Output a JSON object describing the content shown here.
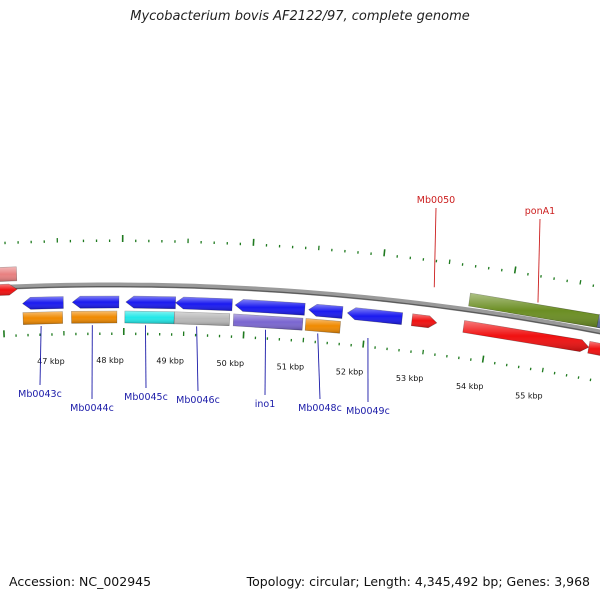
{
  "title": "Mycobacterium bovis AF2122/97, complete genome",
  "footer": {
    "accession": "Accession: NC_002945",
    "summary": "Topology: circular; Length: 4,345,492 bp; Genes: 3,968"
  },
  "colors": {
    "backbone": "#7a7a7a",
    "tick": "#1f7a1f",
    "label_blue": "#1a1aa8",
    "label_red": "#cc1f1f",
    "blue": "#1a1af0",
    "orange": "#f08a00",
    "cyan": "#22e8e8",
    "grey": "#b8b8b8",
    "purple": "#7a66d0",
    "red": "#f01010",
    "pink": "#e88080",
    "olive": "#6b8e23"
  },
  "kbp_labels": [
    "47 kbp",
    "48 kbp",
    "49 kbp",
    "50 kbp",
    "51 kbp",
    "52 kbp",
    "53 kbp",
    "54 kbp",
    "55 kbp"
  ],
  "genes": [
    {
      "label": "Mb0043c",
      "color": "blue",
      "pair": "orange"
    },
    {
      "label": "Mb0044c",
      "color": "blue",
      "pair": "orange"
    },
    {
      "label": "Mb0045c",
      "color": "blue",
      "pair": "cyan"
    },
    {
      "label": "Mb0046c",
      "color": "blue",
      "pair": "grey"
    },
    {
      "label": "ino1",
      "color": "blue",
      "pair": "purple"
    },
    {
      "label": "Mb0048c",
      "color": "blue",
      "pair": "orange"
    },
    {
      "label": "Mb0049c",
      "color": "blue",
      "pair": ""
    },
    {
      "label": "Mb0050",
      "color": "red",
      "pair": ""
    },
    {
      "label": "ponA1",
      "color": "red",
      "pair": "olive"
    }
  ]
}
